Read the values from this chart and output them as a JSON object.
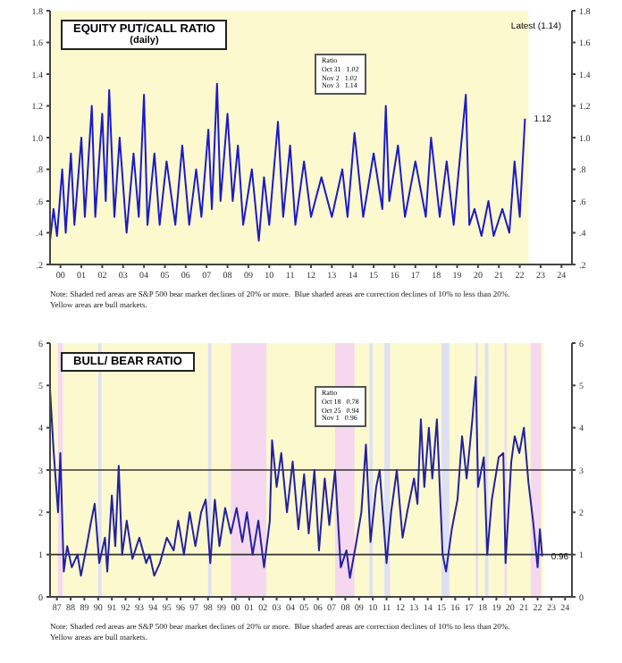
{
  "chart_data": [
    {
      "type": "line",
      "title": "EQUITY PUT/CALL RATIO",
      "subtitle": "(daily)",
      "color": "#1b1bc8",
      "x": [
        "2000-01",
        "2000-03",
        "2000-05",
        "2000-08",
        "2000-10",
        "2001-01",
        "2001-03",
        "2001-07",
        "2001-09",
        "2002-01",
        "2002-03",
        "2002-07",
        "2002-09",
        "2002-11",
        "2003-02",
        "2003-05",
        "2003-09",
        "2004-01",
        "2004-04",
        "2004-07",
        "2004-09",
        "2005-01",
        "2005-04",
        "2005-08",
        "2006-01",
        "2006-05",
        "2006-09",
        "2007-01",
        "2007-04",
        "2007-08",
        "2007-10",
        "2008-01",
        "2008-03",
        "2008-07",
        "2008-10",
        "2009-01",
        "2009-04",
        "2009-09",
        "2010-01",
        "2010-04",
        "2010-07",
        "2010-12",
        "2011-03",
        "2011-07",
        "2011-10",
        "2012-03",
        "2012-07",
        "2013-01",
        "2013-07",
        "2014-01",
        "2014-04",
        "2014-08",
        "2015-01",
        "2015-07",
        "2015-12",
        "2016-02",
        "2016-04",
        "2016-09",
        "2017-01",
        "2017-07",
        "2018-01",
        "2018-04",
        "2018-09",
        "2019-01",
        "2019-05",
        "2019-12",
        "2020-02",
        "2020-05",
        "2020-09",
        "2021-01",
        "2021-04",
        "2021-09",
        "2022-01",
        "2022-04",
        "2022-07",
        "2022-10"
      ],
      "values": [
        0.35,
        0.55,
        0.38,
        0.8,
        0.4,
        0.9,
        0.45,
        1.0,
        0.5,
        1.2,
        0.5,
        1.15,
        0.6,
        1.3,
        0.5,
        1.0,
        0.4,
        0.9,
        0.5,
        1.27,
        0.45,
        0.9,
        0.45,
        0.85,
        0.45,
        0.95,
        0.45,
        0.8,
        0.5,
        1.05,
        0.55,
        1.34,
        0.6,
        1.15,
        0.6,
        0.95,
        0.45,
        0.8,
        0.35,
        0.75,
        0.45,
        1.1,
        0.5,
        0.95,
        0.45,
        0.85,
        0.5,
        0.75,
        0.5,
        0.8,
        0.5,
        1.03,
        0.5,
        0.9,
        0.55,
        1.2,
        0.6,
        0.95,
        0.5,
        0.85,
        0.5,
        1.0,
        0.5,
        0.85,
        0.45,
        1.27,
        0.45,
        0.55,
        0.38,
        0.6,
        0.38,
        0.55,
        0.4,
        0.85,
        0.5,
        1.12
      ],
      "xlim": [
        "2000-01",
        "2025-01"
      ],
      "xticks": [
        {
          "value": "2000-07",
          "label": "00"
        },
        {
          "value": "2001-07",
          "label": "01"
        },
        {
          "value": "2002-07",
          "label": "02"
        },
        {
          "value": "2003-07",
          "label": "03"
        },
        {
          "value": "2004-07",
          "label": "04"
        },
        {
          "value": "2005-07",
          "label": "05"
        },
        {
          "value": "2006-07",
          "label": "06"
        },
        {
          "value": "2007-07",
          "label": "07"
        },
        {
          "value": "2008-07",
          "label": "08"
        },
        {
          "value": "2009-07",
          "label": "09"
        },
        {
          "value": "2010-07",
          "label": "10"
        },
        {
          "value": "2011-07",
          "label": "11"
        },
        {
          "value": "2012-07",
          "label": "12"
        },
        {
          "value": "2013-07",
          "label": "13"
        },
        {
          "value": "2014-07",
          "label": "14"
        },
        {
          "value": "2015-07",
          "label": "15"
        },
        {
          "value": "2016-07",
          "label": "16"
        },
        {
          "value": "2017-07",
          "label": "17"
        },
        {
          "value": "2018-07",
          "label": "18"
        },
        {
          "value": "2019-07",
          "label": "19"
        },
        {
          "value": "2020-07",
          "label": "20"
        },
        {
          "value": "2021-07",
          "label": "21"
        },
        {
          "value": "2022-07",
          "label": "22"
        },
        {
          "value": "2023-07",
          "label": "23"
        },
        {
          "value": "2024-07",
          "label": "24"
        }
      ],
      "ylim": [
        0.2,
        1.8
      ],
      "yticks": [
        {
          "value": 0.2,
          "label": ".2"
        },
        {
          "value": 0.4,
          "label": ".4"
        },
        {
          "value": 0.6,
          "label": ".6"
        },
        {
          "value": 0.8,
          "label": ".8"
        },
        {
          "value": 1.0,
          "label": "1.0"
        },
        1.2,
        1.4,
        1.6,
        1.8
      ],
      "y2lim": [
        0.2,
        1.8
      ],
      "y2ticks": [
        {
          "value": 0.2,
          "label": ".2"
        },
        {
          "value": 0.4,
          "label": ".4"
        },
        {
          "value": 0.6,
          "label": ".6"
        },
        {
          "value": 0.8,
          "label": ".8"
        },
        {
          "value": 1.0,
          "label": "1.0"
        },
        1.2,
        1.4,
        1.6,
        1.8
      ],
      "bands": [
        {
          "axis": "x",
          "from": "2000-01",
          "to": "2022-12",
          "color": "#fdf9cf"
        }
      ],
      "annotations": [
        "Latest (1.14)",
        "Ratio\nOct 31   1.02\nNov 2   1.02\nNov 3   1.14",
        {
          "text": "1.12",
          "x": "2022-10",
          "y": 1.12
        },
        "Note: Shaded red areas are S&P 500 bear market declines of 20% or more.  Blue shaded areas are correction declines of 10% to less than 20%.\nYellow areas are bull markets."
      ],
      "grid": false,
      "legend": false
    },
    {
      "type": "line",
      "title": "BULL/ BEAR RATIO",
      "color": "#22229e",
      "x": [
        "1987-01",
        "1987-04",
        "1987-08",
        "1987-10",
        "1988-01",
        "1988-04",
        "1988-08",
        "1989-01",
        "1989-04",
        "1989-09",
        "1990-01",
        "1990-04",
        "1990-08",
        "1991-01",
        "1991-03",
        "1991-07",
        "1991-10",
        "1992-01",
        "1992-04",
        "1992-08",
        "1993-01",
        "1993-07",
        "1994-01",
        "1994-04",
        "1994-08",
        "1995-01",
        "1995-07",
        "1996-01",
        "1996-05",
        "1996-10",
        "1997-03",
        "1997-08",
        "1998-01",
        "1998-05",
        "1998-09",
        "1999-01",
        "1999-05",
        "1999-10",
        "2000-03",
        "2000-08",
        "2001-01",
        "2001-05",
        "2001-10",
        "2002-03",
        "2002-08",
        "2003-01",
        "2003-03",
        "2003-07",
        "2003-11",
        "2004-04",
        "2004-09",
        "2005-02",
        "2005-07",
        "2005-11",
        "2006-04",
        "2006-08",
        "2007-01",
        "2007-05",
        "2007-10",
        "2008-03",
        "2008-08",
        "2008-11",
        "2009-04",
        "2009-09",
        "2010-01",
        "2010-05",
        "2010-10",
        "2011-01",
        "2011-07",
        "2011-11",
        "2012-04",
        "2012-09",
        "2013-01",
        "2013-07",
        "2013-10",
        "2014-01",
        "2014-04",
        "2014-08",
        "2014-11",
        "2015-03",
        "2015-08",
        "2015-11",
        "2016-04",
        "2016-09",
        "2017-01",
        "2017-05",
        "2017-10",
        "2018-01",
        "2018-03",
        "2018-08",
        "2018-11",
        "2019-03",
        "2019-09",
        "2020-01",
        "2020-03",
        "2020-08",
        "2020-11",
        "2021-03",
        "2021-07",
        "2021-11",
        "2022-03",
        "2022-07",
        "2022-09",
        "2022-11"
      ],
      "values": [
        4.9,
        3.5,
        2.0,
        3.4,
        0.6,
        1.2,
        0.7,
        1.0,
        0.5,
        1.2,
        1.8,
        2.2,
        0.8,
        1.4,
        0.6,
        2.4,
        1.2,
        3.1,
        1.0,
        1.8,
        0.9,
        1.4,
        0.8,
        1.0,
        0.5,
        0.8,
        1.4,
        1.1,
        1.8,
        1.0,
        2.0,
        1.2,
        2.0,
        2.3,
        0.8,
        2.3,
        1.2,
        2.1,
        1.5,
        2.1,
        1.3,
        2.0,
        1.0,
        1.8,
        0.7,
        1.8,
        3.7,
        2.6,
        3.4,
        2.0,
        3.2,
        1.6,
        2.9,
        1.5,
        3.0,
        1.1,
        2.8,
        1.7,
        3.0,
        0.7,
        1.1,
        0.45,
        1.2,
        2.0,
        3.6,
        1.3,
        2.6,
        3.0,
        0.8,
        2.0,
        3.0,
        1.4,
        2.0,
        2.8,
        2.2,
        4.2,
        2.6,
        4.0,
        2.8,
        4.2,
        1.0,
        0.6,
        1.6,
        2.3,
        3.8,
        2.8,
        4.2,
        5.2,
        2.6,
        3.3,
        1.0,
        2.3,
        3.3,
        3.4,
        0.8,
        3.2,
        3.8,
        3.4,
        4.0,
        2.7,
        1.8,
        0.7,
        1.6,
        0.96
      ],
      "xlim": [
        "1987-01",
        "2025-01"
      ],
      "xticks": [
        {
          "value": "1987-07",
          "label": "87"
        },
        {
          "value": "1988-07",
          "label": "88"
        },
        {
          "value": "1989-07",
          "label": "89"
        },
        {
          "value": "1990-07",
          "label": "90"
        },
        {
          "value": "1991-07",
          "label": "91"
        },
        {
          "value": "1992-07",
          "label": "92"
        },
        {
          "value": "1993-07",
          "label": "93"
        },
        {
          "value": "1994-07",
          "label": "94"
        },
        {
          "value": "1995-07",
          "label": "95"
        },
        {
          "value": "1996-07",
          "label": "96"
        },
        {
          "value": "1997-07",
          "label": "97"
        },
        {
          "value": "1998-07",
          "label": "98"
        },
        {
          "value": "1999-07",
          "label": "99"
        },
        {
          "value": "2000-07",
          "label": "00"
        },
        {
          "value": "2001-07",
          "label": "01"
        },
        {
          "value": "2002-07",
          "label": "02"
        },
        {
          "value": "2003-07",
          "label": "03"
        },
        {
          "value": "2004-07",
          "label": "04"
        },
        {
          "value": "2005-07",
          "label": "05"
        },
        {
          "value": "2006-07",
          "label": "06"
        },
        {
          "value": "2007-07",
          "label": "07"
        },
        {
          "value": "2008-07",
          "label": "08"
        },
        {
          "value": "2009-07",
          "label": "09"
        },
        {
          "value": "2010-07",
          "label": "10"
        },
        {
          "value": "2011-07",
          "label": "11"
        },
        {
          "value": "2012-07",
          "label": "12"
        },
        {
          "value": "2013-07",
          "label": "13"
        },
        {
          "value": "2014-07",
          "label": "14"
        },
        {
          "value": "2015-07",
          "label": "15"
        },
        {
          "value": "2016-07",
          "label": "16"
        },
        {
          "value": "2017-07",
          "label": "17"
        },
        {
          "value": "2018-07",
          "label": "18"
        },
        {
          "value": "2019-07",
          "label": "19"
        },
        {
          "value": "2020-07",
          "label": "20"
        },
        {
          "value": "2021-07",
          "label": "21"
        },
        {
          "value": "2022-07",
          "label": "22"
        },
        {
          "value": "2023-07",
          "label": "23"
        },
        {
          "value": "2024-07",
          "label": "24"
        }
      ],
      "ylim": [
        0,
        6
      ],
      "yticks": [
        0,
        1,
        2,
        3,
        4,
        5,
        6
      ],
      "y2lim": [
        0,
        6
      ],
      "y2ticks": [
        0,
        1,
        2,
        3,
        4,
        5,
        6
      ],
      "bands": [
        {
          "axis": "x",
          "from": "1987-01",
          "to": "2022-12",
          "color": "#fdf9cf"
        },
        {
          "axis": "x",
          "from": "1987-08",
          "to": "1987-12",
          "color": "#f5d8f0"
        },
        {
          "axis": "x",
          "from": "1990-07",
          "to": "1990-10",
          "color": "#dfe1f3"
        },
        {
          "axis": "x",
          "from": "1998-07",
          "to": "1998-10",
          "color": "#dfe1f3"
        },
        {
          "axis": "x",
          "from": "2000-03",
          "to": "2002-10",
          "color": "#f5d8f0"
        },
        {
          "axis": "x",
          "from": "2007-10",
          "to": "2009-03",
          "color": "#f5d8f0"
        },
        {
          "axis": "x",
          "from": "2010-04",
          "to": "2010-07",
          "color": "#dfe1f3"
        },
        {
          "axis": "x",
          "from": "2011-05",
          "to": "2011-10",
          "color": "#dfe1f3"
        },
        {
          "axis": "x",
          "from": "2015-07",
          "to": "2016-02",
          "color": "#dfe1f3"
        },
        {
          "axis": "x",
          "from": "2018-01",
          "to": "2018-03",
          "color": "#dfe1f3"
        },
        {
          "axis": "x",
          "from": "2018-09",
          "to": "2018-12",
          "color": "#dfe1f3"
        },
        {
          "axis": "x",
          "from": "2020-02",
          "to": "2020-04",
          "color": "#f5d8f0"
        },
        {
          "axis": "x",
          "from": "2022-01",
          "to": "2022-10",
          "color": "#f5d8f0"
        }
      ],
      "ref_lines": [
        {
          "axis": "y",
          "value": 1,
          "color": "#333333"
        },
        {
          "axis": "y",
          "value": 3,
          "color": "#333333"
        }
      ],
      "annotations": [
        "Ratio\nOct 18   0.78\nOct 25   0.94\nNov 1   0.96",
        {
          "text": "0.96",
          "x": "2022-11",
          "y": 0.96
        },
        "Note: Shaded red areas are S&P 500 bear market declines of 20% or more.  Blue shaded areas are correction declines of 10% to less than 20%.\nYellow areas are bull markets."
      ],
      "grid": false,
      "legend": false
    }
  ]
}
